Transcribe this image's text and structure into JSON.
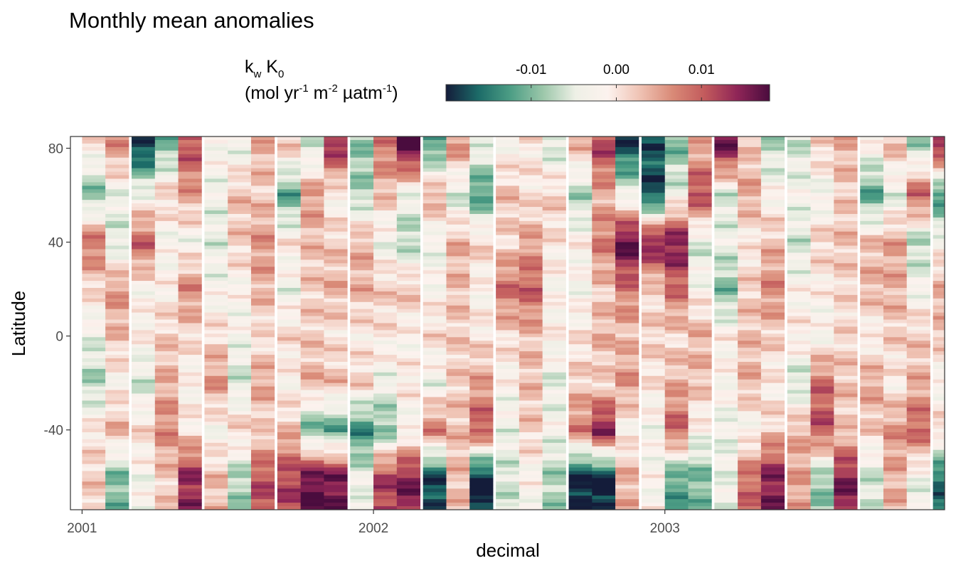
{
  "chart_data": {
    "type": "heatmap",
    "title": "Monthly mean anomalies",
    "xlabel": "decimal",
    "ylabel": "Latitude",
    "x_ticks": [
      2001,
      2002,
      2003
    ],
    "x_tick_labels": [
      "2001",
      "2002",
      "2003"
    ],
    "y_ticks": [
      80,
      40,
      0,
      -40
    ],
    "y_tick_labels": [
      "80",
      "40",
      "0",
      "-40"
    ],
    "xlim": [
      2000.96,
      2003.96
    ],
    "ylim": [
      -74,
      85
    ],
    "legend": {
      "placement": "top",
      "title_main": "k",
      "title_main_sub": "w",
      "title_main2": " K",
      "title_main2_sub": "0",
      "title_units": [
        "(mol yr",
        "-1",
        " m",
        "-2",
        " µatm",
        "-1",
        ")"
      ],
      "breaks": [
        -0.01,
        0.0,
        0.01
      ],
      "break_labels": [
        "-0.01",
        "0.00",
        "0.01"
      ],
      "limits": [
        -0.02,
        0.018
      ],
      "colors": [
        "#141c3a",
        "#1c6b68",
        "#4d9e85",
        "#9cc7aa",
        "#eef0e6",
        "#fcf2ee",
        "#efc2b3",
        "#d98a77",
        "#c25a5c",
        "#8f2557",
        "#4a0c3e"
      ]
    },
    "months": [
      "2001-01",
      "2001-02",
      "2001-03",
      "2001-04",
      "2001-05",
      "2001-06",
      "2001-07",
      "2001-08",
      "2001-09",
      "2001-10",
      "2001-11",
      "2001-12",
      "2002-01",
      "2002-02",
      "2002-03",
      "2002-04",
      "2002-05",
      "2002-06",
      "2002-07",
      "2002-08",
      "2002-09",
      "2002-10",
      "2002-11",
      "2002-12",
      "2003-01",
      "2003-02",
      "2003-03",
      "2003-04",
      "2003-05",
      "2003-06",
      "2003-07",
      "2003-08",
      "2003-09",
      "2003-10",
      "2003-11",
      "2003-12"
    ],
    "month_decimal": [
      2001.04,
      2001.12,
      2001.21,
      2001.29,
      2001.37,
      2001.46,
      2001.54,
      2001.62,
      2001.71,
      2001.79,
      2001.87,
      2001.96,
      2002.04,
      2002.12,
      2002.21,
      2002.29,
      2002.37,
      2002.46,
      2002.54,
      2002.62,
      2002.71,
      2002.79,
      2002.87,
      2002.96,
      2003.04,
      2003.12,
      2003.21,
      2003.29,
      2003.37,
      2003.46,
      2003.54,
      2003.62,
      2003.71,
      2003.79,
      2003.87,
      2003.96
    ],
    "lat_bands": [
      80,
      60,
      40,
      20,
      0,
      -20,
      -40,
      -60
    ],
    "band_anomalies": [
      [
        0.0,
        -0.01,
        0.009,
        0.001,
        -0.004,
        -0.008,
        0.0,
        0.002
      ],
      [
        0.006,
        -0.004,
        -0.006,
        0.006,
        0.003,
        -0.002,
        0.004,
        -0.01
      ],
      [
        -0.019,
        -0.003,
        0.01,
        -0.002,
        -0.001,
        -0.006,
        0.001,
        -0.003
      ],
      [
        -0.01,
        0.002,
        -0.003,
        -0.001,
        0.002,
        0.004,
        0.007,
        0.002
      ],
      [
        0.011,
        0.005,
        -0.003,
        0.007,
        0.001,
        -0.002,
        0.0,
        0.014
      ],
      [
        -0.002,
        -0.004,
        -0.005,
        -0.003,
        0.001,
        0.006,
        -0.003,
        0.003
      ],
      [
        -0.004,
        0.003,
        0.002,
        -0.002,
        -0.003,
        -0.006,
        0.002,
        -0.008
      ],
      [
        0.004,
        0.002,
        0.006,
        0.004,
        0.0,
        0.005,
        0.001,
        0.011
      ],
      [
        0.002,
        -0.012,
        0.0,
        -0.004,
        0.001,
        -0.002,
        0.003,
        0.012
      ],
      [
        -0.006,
        0.006,
        0.003,
        0.002,
        0.002,
        0.004,
        -0.011,
        0.017
      ],
      [
        0.014,
        -0.002,
        0.002,
        0.004,
        0.0,
        0.003,
        -0.012,
        0.016
      ],
      [
        -0.009,
        -0.008,
        0.004,
        0.004,
        -0.001,
        0.002,
        -0.014,
        -0.004
      ],
      [
        0.008,
        0.003,
        -0.004,
        0.002,
        0.0,
        -0.004,
        -0.01,
        0.012
      ],
      [
        0.018,
        -0.004,
        -0.008,
        0.003,
        -0.002,
        0.0,
        -0.003,
        0.015
      ],
      [
        -0.012,
        0.005,
        -0.004,
        -0.002,
        0.001,
        -0.004,
        0.008,
        -0.018
      ],
      [
        0.006,
        -0.006,
        0.004,
        0.003,
        0.002,
        0.002,
        0.003,
        0.003
      ],
      [
        -0.004,
        -0.013,
        0.002,
        -0.002,
        0.0,
        0.005,
        0.011,
        -0.02
      ],
      [
        -0.002,
        0.003,
        0.001,
        0.009,
        0.001,
        -0.002,
        -0.004,
        -0.006
      ],
      [
        0.0,
        0.0,
        0.005,
        0.01,
        0.003,
        0.003,
        0.002,
        -0.002
      ],
      [
        -0.006,
        0.002,
        0.0,
        -0.002,
        -0.001,
        -0.005,
        -0.003,
        -0.008
      ],
      [
        0.003,
        -0.008,
        -0.001,
        -0.003,
        0.0,
        0.002,
        0.008,
        -0.02
      ],
      [
        0.012,
        0.004,
        0.008,
        0.002,
        0.004,
        0.001,
        0.016,
        -0.02
      ],
      [
        -0.018,
        -0.004,
        0.018,
        0.008,
        0.003,
        0.006,
        -0.002,
        0.004
      ],
      [
        -0.017,
        -0.018,
        0.016,
        0.001,
        0.002,
        0.0,
        -0.003,
        -0.002
      ],
      [
        -0.01,
        -0.004,
        0.016,
        0.009,
        0.001,
        0.004,
        0.01,
        -0.012
      ],
      [
        0.004,
        0.012,
        -0.006,
        -0.002,
        0.004,
        0.003,
        -0.002,
        -0.01
      ],
      [
        0.016,
        -0.006,
        -0.004,
        -0.01,
        -0.001,
        -0.002,
        -0.004,
        -0.004
      ],
      [
        0.002,
        0.005,
        -0.001,
        0.002,
        0.003,
        0.004,
        -0.003,
        0.009
      ],
      [
        -0.007,
        -0.002,
        0.003,
        0.007,
        0.002,
        -0.001,
        0.002,
        0.015
      ],
      [
        -0.006,
        -0.003,
        -0.006,
        -0.002,
        0.0,
        -0.007,
        0.004,
        0.005
      ],
      [
        0.002,
        -0.004,
        0.002,
        -0.001,
        -0.003,
        0.009,
        0.011,
        -0.009
      ],
      [
        0.004,
        0.002,
        0.003,
        0.001,
        0.001,
        0.003,
        0.002,
        0.015
      ],
      [
        -0.002,
        -0.012,
        0.003,
        0.004,
        -0.002,
        0.005,
        0.002,
        -0.006
      ],
      [
        0.003,
        -0.005,
        0.005,
        0.004,
        0.002,
        -0.001,
        0.006,
        0.004
      ],
      [
        -0.008,
        0.01,
        -0.008,
        -0.003,
        0.002,
        0.004,
        0.01,
        -0.004
      ],
      [
        0.014,
        -0.014,
        -0.002,
        0.004,
        0.003,
        -0.003,
        0.002,
        -0.016
      ]
    ]
  }
}
